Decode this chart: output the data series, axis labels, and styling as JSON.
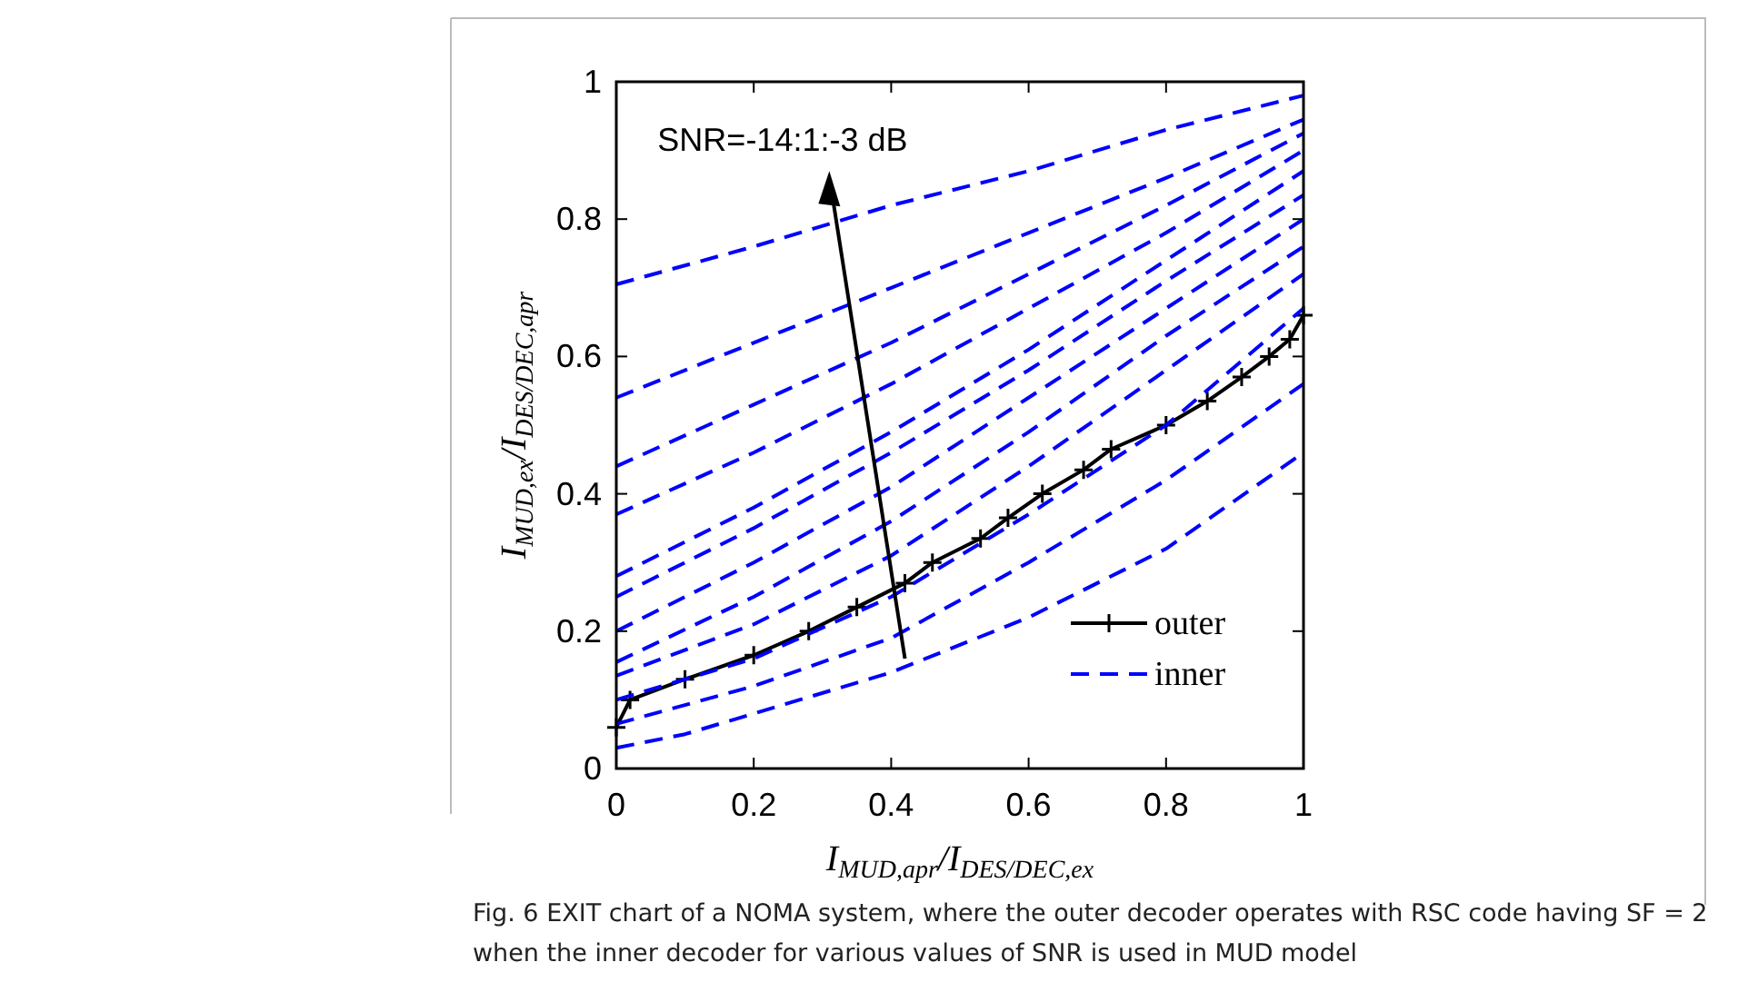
{
  "chart_data": {
    "type": "line",
    "xlabel": "I$_{MUD,apr}$/I$_{DES/DEC,ex}$",
    "ylabel": "I$_{MUD,ex}$/I$_{DES/DEC,apr}$",
    "xlim": [
      0,
      1
    ],
    "ylim": [
      0,
      1
    ],
    "xticks": [
      0,
      0.2,
      0.4,
      0.6,
      0.8,
      1
    ],
    "yticks": [
      0,
      0.2,
      0.4,
      0.6,
      0.8,
      1
    ],
    "grid": false,
    "legend": "bottom right",
    "annotations": [
      "SNR=-14:1:-3 dB",
      "Fig. 6 EXIT chart of a NOMA system, where the outer decoder operates with RSC code having SF = 2 when the inner decoder for various values of SNR is used in MUD model"
    ],
    "series": [
      {
        "name": "outer",
        "color": "#000000",
        "marker": "cross",
        "line_style": "solid",
        "x": [
          0,
          0.02,
          0.1,
          0.2,
          0.28,
          0.35,
          0.42,
          0.46,
          0.53,
          0.57,
          0.62,
          0.68,
          0.72,
          0.8,
          0.86,
          0.91,
          0.95,
          0.98,
          1
        ],
        "values": [
          0.06,
          0.1,
          0.13,
          0.165,
          0.2,
          0.235,
          0.27,
          0.3,
          0.335,
          0.365,
          0.4,
          0.435,
          0.465,
          0.5,
          0.535,
          0.57,
          0.6,
          0.625,
          0.66
        ]
      },
      {
        "name": "inner",
        "color": "#0000ff",
        "marker": "none",
        "line_style": "dashed",
        "x": [
          0,
          0.1,
          0.2,
          0.4,
          0.6,
          0.8,
          1
        ],
        "values": [
          0.03,
          0.05,
          0.08,
          0.14,
          0.22,
          0.32,
          0.46
        ]
      },
      {
        "color": "#0000ff",
        "marker": "none",
        "line_style": "dashed",
        "x": [
          0,
          0.2,
          0.4,
          0.6,
          0.8,
          1
        ],
        "values": [
          0.065,
          0.12,
          0.19,
          0.3,
          0.42,
          0.56
        ]
      },
      {
        "color": "#0000ff",
        "marker": "none",
        "line_style": "dashed",
        "x": [
          0,
          0.2,
          0.4,
          0.6,
          0.8,
          1
        ],
        "values": [
          0.1,
          0.16,
          0.25,
          0.37,
          0.5,
          0.67
        ]
      },
      {
        "color": "#0000ff",
        "marker": "none",
        "line_style": "dashed",
        "x": [
          0,
          0.2,
          0.4,
          0.6,
          0.8,
          1
        ],
        "values": [
          0.135,
          0.21,
          0.31,
          0.44,
          0.58,
          0.72
        ]
      },
      {
        "color": "#0000ff",
        "marker": "none",
        "line_style": "dashed",
        "x": [
          0,
          0.2,
          0.4,
          0.6,
          0.8,
          1
        ],
        "values": [
          0.155,
          0.25,
          0.36,
          0.49,
          0.63,
          0.76
        ]
      },
      {
        "color": "#0000ff",
        "marker": "none",
        "line_style": "dashed",
        "x": [
          0,
          0.2,
          0.4,
          0.6,
          0.8,
          1
        ],
        "values": [
          0.2,
          0.3,
          0.41,
          0.54,
          0.67,
          0.8
        ]
      },
      {
        "color": "#0000ff",
        "marker": "none",
        "line_style": "dashed",
        "x": [
          0,
          0.2,
          0.4,
          0.6,
          0.8,
          1
        ],
        "values": [
          0.25,
          0.35,
          0.46,
          0.58,
          0.71,
          0.835
        ]
      },
      {
        "color": "#0000ff",
        "marker": "none",
        "line_style": "dashed",
        "x": [
          0,
          0.2,
          0.4,
          0.6,
          0.8,
          1
        ],
        "values": [
          0.28,
          0.38,
          0.49,
          0.61,
          0.74,
          0.87
        ]
      },
      {
        "color": "#0000ff",
        "marker": "none",
        "line_style": "dashed",
        "x": [
          0,
          0.2,
          0.4,
          0.6,
          0.8,
          1
        ],
        "values": [
          0.37,
          0.46,
          0.56,
          0.67,
          0.78,
          0.9
        ]
      },
      {
        "color": "#0000ff",
        "marker": "none",
        "line_style": "dashed",
        "x": [
          0,
          0.2,
          0.4,
          0.6,
          0.8,
          1
        ],
        "values": [
          0.44,
          0.53,
          0.62,
          0.72,
          0.82,
          0.925
        ]
      },
      {
        "color": "#0000ff",
        "marker": "none",
        "line_style": "dashed",
        "x": [
          0,
          0.2,
          0.4,
          0.6,
          0.8,
          1
        ],
        "values": [
          0.54,
          0.62,
          0.7,
          0.78,
          0.86,
          0.945
        ]
      },
      {
        "color": "#0000ff",
        "marker": "none",
        "line_style": "dashed",
        "x": [
          0,
          0.2,
          0.4,
          0.6,
          0.8,
          1
        ],
        "values": [
          0.705,
          0.76,
          0.82,
          0.87,
          0.93,
          0.98
        ]
      }
    ]
  }
}
